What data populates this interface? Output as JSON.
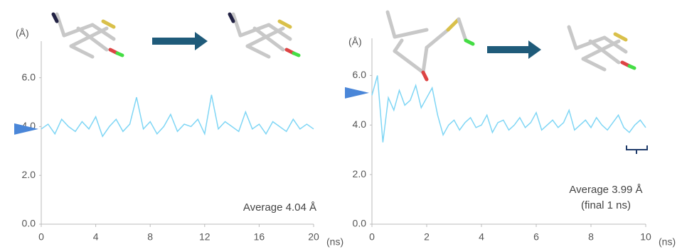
{
  "chart_data": [
    {
      "type": "line",
      "y_label": "(Å)",
      "x_label": "(ns)",
      "annotations": [
        "Average 4.04 Å"
      ],
      "x": [
        0,
        0.5,
        1,
        1.5,
        2,
        2.5,
        3,
        3.5,
        4,
        4.5,
        5,
        5.5,
        6,
        6.5,
        7,
        7.5,
        8,
        8.5,
        9,
        9.5,
        10,
        10.5,
        11,
        11.5,
        12,
        12.5,
        13,
        13.5,
        14,
        14.5,
        15,
        15.5,
        16,
        16.5,
        17,
        17.5,
        18,
        18.5,
        19,
        19.5,
        20
      ],
      "series": [
        {
          "color": "#7fd6f5",
          "values": [
            3.9,
            4.1,
            3.7,
            4.3,
            4.0,
            3.8,
            4.2,
            3.9,
            4.4,
            3.6,
            4.0,
            4.3,
            3.8,
            4.1,
            5.2,
            3.9,
            4.2,
            3.7,
            4.0,
            4.5,
            3.8,
            4.1,
            4.0,
            4.3,
            3.7,
            5.3,
            3.9,
            4.2,
            4.0,
            3.8,
            4.6,
            3.9,
            4.1,
            3.7,
            4.2,
            4.0,
            3.8,
            4.3,
            3.9,
            4.1,
            3.9
          ]
        }
      ],
      "marker_value": 3.9,
      "marker_color": "#4a86d8",
      "xlim": [
        0,
        20
      ],
      "ylim": [
        0,
        7.5
      ],
      "xticks": [
        0,
        4,
        8,
        12,
        16,
        20
      ],
      "yticks": [
        {
          "value": 0,
          "label": "0.0"
        },
        {
          "value": 2,
          "label": "2.0"
        },
        {
          "value": 4,
          "label": "4.0"
        },
        {
          "value": 6,
          "label": "6.0"
        }
      ]
    },
    {
      "type": "line",
      "y_label": "(Å)",
      "x_label": "(ns)",
      "annotations": [
        "Average 3.99 Å",
        "(final 1 ns)"
      ],
      "x": [
        0,
        0.2,
        0.4,
        0.6,
        0.8,
        1,
        1.2,
        1.4,
        1.6,
        1.8,
        2,
        2.2,
        2.4,
        2.6,
        2.8,
        3,
        3.2,
        3.4,
        3.6,
        3.8,
        4,
        4.2,
        4.4,
        4.6,
        4.8,
        5,
        5.2,
        5.4,
        5.6,
        5.8,
        6,
        6.2,
        6.4,
        6.6,
        6.8,
        7,
        7.2,
        7.4,
        7.6,
        7.8,
        8,
        8.2,
        8.4,
        8.6,
        8.8,
        9,
        9.2,
        9.4,
        9.6,
        9.8,
        10
      ],
      "series": [
        {
          "color": "#7fd6f5",
          "values": [
            5.2,
            6.0,
            3.3,
            5.1,
            4.6,
            5.4,
            4.8,
            5.0,
            5.6,
            4.7,
            5.1,
            5.5,
            4.4,
            3.6,
            4.0,
            4.2,
            3.8,
            4.1,
            4.3,
            3.9,
            4.0,
            4.4,
            3.7,
            4.1,
            4.2,
            3.8,
            4.0,
            4.3,
            3.9,
            4.1,
            4.5,
            3.8,
            4.0,
            4.2,
            3.9,
            4.1,
            4.6,
            3.8,
            4.0,
            4.2,
            3.9,
            4.3,
            4.0,
            3.8,
            4.1,
            4.4,
            3.9,
            3.7,
            4.0,
            4.2,
            3.9
          ]
        }
      ],
      "marker_value": 5.3,
      "marker_color": "#4a86d8",
      "xlim": [
        0,
        10
      ],
      "ylim": [
        0,
        7.5
      ],
      "xticks": [
        0,
        2,
        4,
        6,
        8,
        10
      ],
      "yticks": [
        {
          "value": 0,
          "label": "0.0"
        },
        {
          "value": 2,
          "label": "2.0"
        },
        {
          "value": 4,
          "label": "4.0"
        },
        {
          "value": 6,
          "label": "6.0"
        }
      ]
    }
  ]
}
